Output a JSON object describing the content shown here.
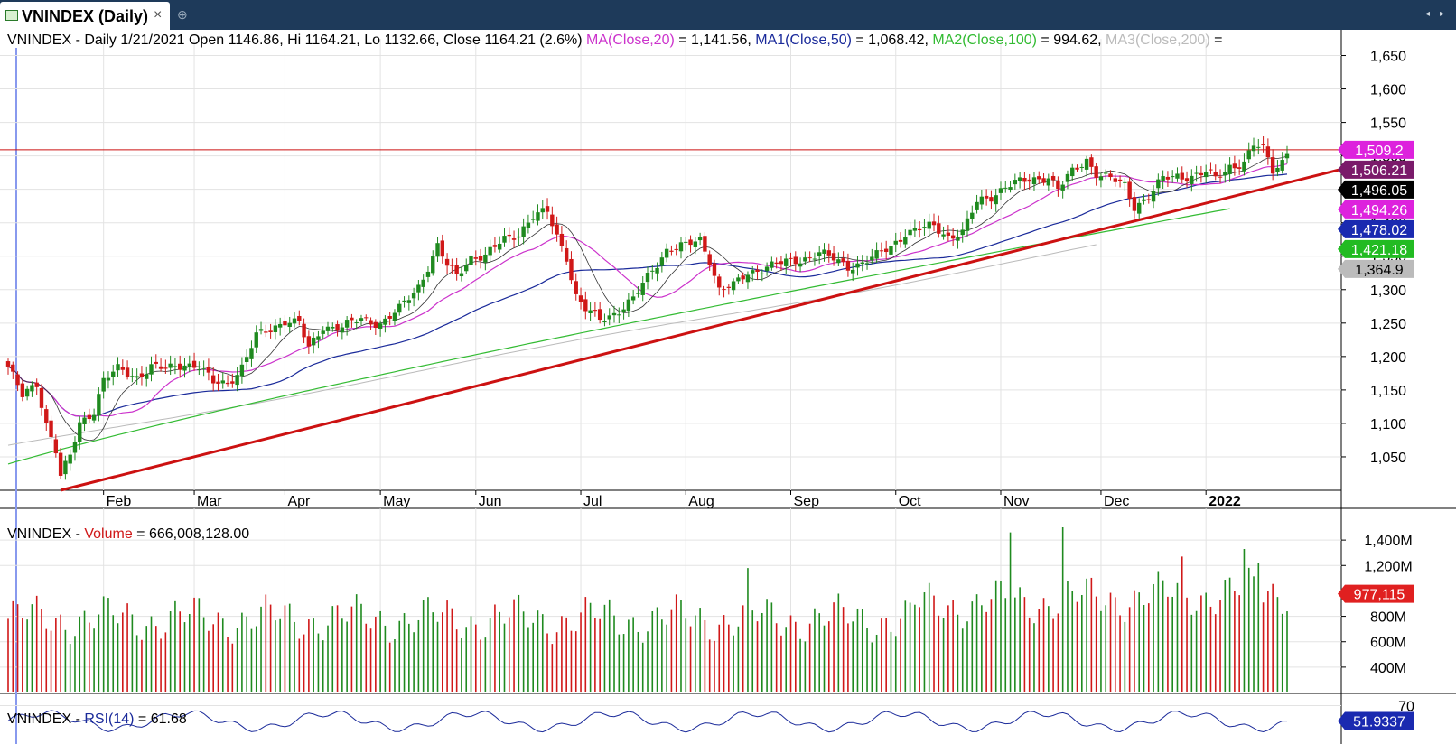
{
  "window": {
    "tab_title": "VNINDEX (Daily)",
    "close_glyph": "×",
    "add_glyph": "⊕",
    "nav_left": "◂",
    "nav_right": "▸",
    "icon": "chart-window-icon"
  },
  "price_header": {
    "text": "VNINDEX - Daily 1/21/2021 Open 1146.86, Hi 1164.21, Lo 1132.66, Close 1164.21 (2.6%)",
    "ma20": "MA(Close,20)",
    "ma20_val": "= 1,141.56,",
    "ma50": "MA1(Close,50)",
    "ma50_val": "= 1,068.42,",
    "ma100": "MA2(Close,100)",
    "ma100_val": "= 994.62,",
    "ma200": "MA3(Close,200)",
    "ma200_val": "="
  },
  "volume_header": {
    "prefix": "VNINDEX - ",
    "label": "Volume",
    "value": "= 666,008,128.00"
  },
  "rsi_header": {
    "prefix": "VNINDEX - ",
    "label": "RSI(14)",
    "value": "= 61.68"
  },
  "colors": {
    "up": "#1f8a1f",
    "down": "#d01818",
    "ma20": "#cc33cc",
    "ma50": "#1a2a9a",
    "ma100": "#33bb33",
    "ma200": "#bbbbbb",
    "trend": "#cc1111",
    "rsi": "#1a2a9a"
  },
  "chart_data": {
    "type": "candlestick",
    "x_labels": [
      "Feb",
      "Mar",
      "Apr",
      "May",
      "Jun",
      "Jul",
      "Aug",
      "Sep",
      "Oct",
      "Nov",
      "Dec",
      "2022"
    ],
    "y_ticks": [
      "1,650",
      "1,600",
      "1,550",
      "1,500",
      "1,450",
      "1,400",
      "1,350",
      "1,300",
      "1,250",
      "1,200",
      "1,150",
      "1,100",
      "1,050"
    ],
    "ylim": [
      1000,
      1675
    ],
    "price_badges": [
      {
        "label": "1,509.2",
        "value": 1509.2,
        "color": "#dd22dd"
      },
      {
        "label": "1,506.21",
        "value": 1506.21,
        "color": "#7a1a6a"
      },
      {
        "label": "1,496.05",
        "value": 1496.05,
        "color": "#000000"
      },
      {
        "label": "1,494.26",
        "value": 1494.26,
        "color": "#dd22dd"
      },
      {
        "label": "1,478.02",
        "value": 1478.02,
        "color": "#1a2ab0"
      },
      {
        "label": "1,421.18",
        "value": 1421.18,
        "color": "#22bb22"
      },
      {
        "label": "1,364.9",
        "value": 1364.9,
        "color": "#bbbbbb"
      }
    ],
    "resistance_level": 1509.2,
    "price_anchors": [
      [
        0,
        1185
      ],
      [
        3,
        1140
      ],
      [
        6,
        1160
      ],
      [
        8,
        1100
      ],
      [
        10,
        1060
      ],
      [
        11,
        1020
      ],
      [
        13,
        1050
      ],
      [
        15,
        1100
      ],
      [
        18,
        1120
      ],
      [
        20,
        1165
      ],
      [
        23,
        1180
      ],
      [
        27,
        1170
      ],
      [
        30,
        1185
      ],
      [
        33,
        1180
      ],
      [
        37,
        1190
      ],
      [
        40,
        1185
      ],
      [
        43,
        1160
      ],
      [
        46,
        1160
      ],
      [
        49,
        1185
      ],
      [
        52,
        1230
      ],
      [
        55,
        1240
      ],
      [
        58,
        1255
      ],
      [
        61,
        1250
      ],
      [
        63,
        1210
      ],
      [
        66,
        1245
      ],
      [
        70,
        1245
      ],
      [
        74,
        1255
      ],
      [
        78,
        1250
      ],
      [
        82,
        1270
      ],
      [
        86,
        1305
      ],
      [
        90,
        1365
      ],
      [
        92,
        1335
      ],
      [
        94,
        1320
      ],
      [
        97,
        1350
      ],
      [
        100,
        1350
      ],
      [
        104,
        1375
      ],
      [
        107,
        1385
      ],
      [
        110,
        1410
      ],
      [
        113,
        1415
      ],
      [
        115,
        1380
      ],
      [
        117,
        1350
      ],
      [
        119,
        1290
      ],
      [
        121,
        1270
      ],
      [
        124,
        1255
      ],
      [
        127,
        1265
      ],
      [
        131,
        1285
      ],
      [
        135,
        1330
      ],
      [
        138,
        1360
      ],
      [
        142,
        1365
      ],
      [
        145,
        1375
      ],
      [
        147,
        1345
      ],
      [
        149,
        1300
      ],
      [
        152,
        1305
      ],
      [
        155,
        1325
      ],
      [
        159,
        1335
      ],
      [
        163,
        1340
      ],
      [
        166,
        1345
      ],
      [
        170,
        1355
      ],
      [
        173,
        1345
      ],
      [
        176,
        1335
      ],
      [
        179,
        1340
      ],
      [
        182,
        1350
      ],
      [
        185,
        1365
      ],
      [
        188,
        1385
      ],
      [
        191,
        1390
      ],
      [
        194,
        1395
      ],
      [
        197,
        1380
      ],
      [
        200,
        1385
      ],
      [
        203,
        1430
      ],
      [
        206,
        1440
      ],
      [
        209,
        1455
      ],
      [
        212,
        1460
      ],
      [
        215,
        1465
      ],
      [
        218,
        1470
      ],
      [
        220,
        1450
      ],
      [
        223,
        1475
      ],
      [
        226,
        1495
      ],
      [
        228,
        1475
      ],
      [
        231,
        1465
      ],
      [
        234,
        1455
      ],
      [
        236,
        1425
      ],
      [
        239,
        1440
      ],
      [
        242,
        1465
      ],
      [
        245,
        1470
      ],
      [
        248,
        1470
      ],
      [
        251,
        1475
      ],
      [
        253,
        1465
      ],
      [
        256,
        1485
      ],
      [
        259,
        1490
      ],
      [
        261,
        1515
      ],
      [
        263,
        1510
      ],
      [
        265,
        1480
      ],
      [
        267,
        1493
      ],
      [
        268,
        1506
      ]
    ],
    "volume_ticks": [
      "1,400M",
      "1,200M",
      "800M",
      "600M",
      "400M"
    ],
    "volume_ylim": [
      250,
      1550
    ],
    "volume_badge": {
      "label": "977,115",
      "value": 977.115
    },
    "volume_spikes": [
      [
        155,
        1180
      ],
      [
        210,
        1460
      ],
      [
        221,
        1500
      ],
      [
        246,
        1270
      ],
      [
        259,
        1330
      ],
      [
        262,
        1220
      ]
    ],
    "rsi_ticks": [
      "70"
    ],
    "rsi_badge": {
      "label": "51.9337",
      "value": 51.9337
    },
    "rsi_ylim": [
      25,
      80
    ]
  }
}
